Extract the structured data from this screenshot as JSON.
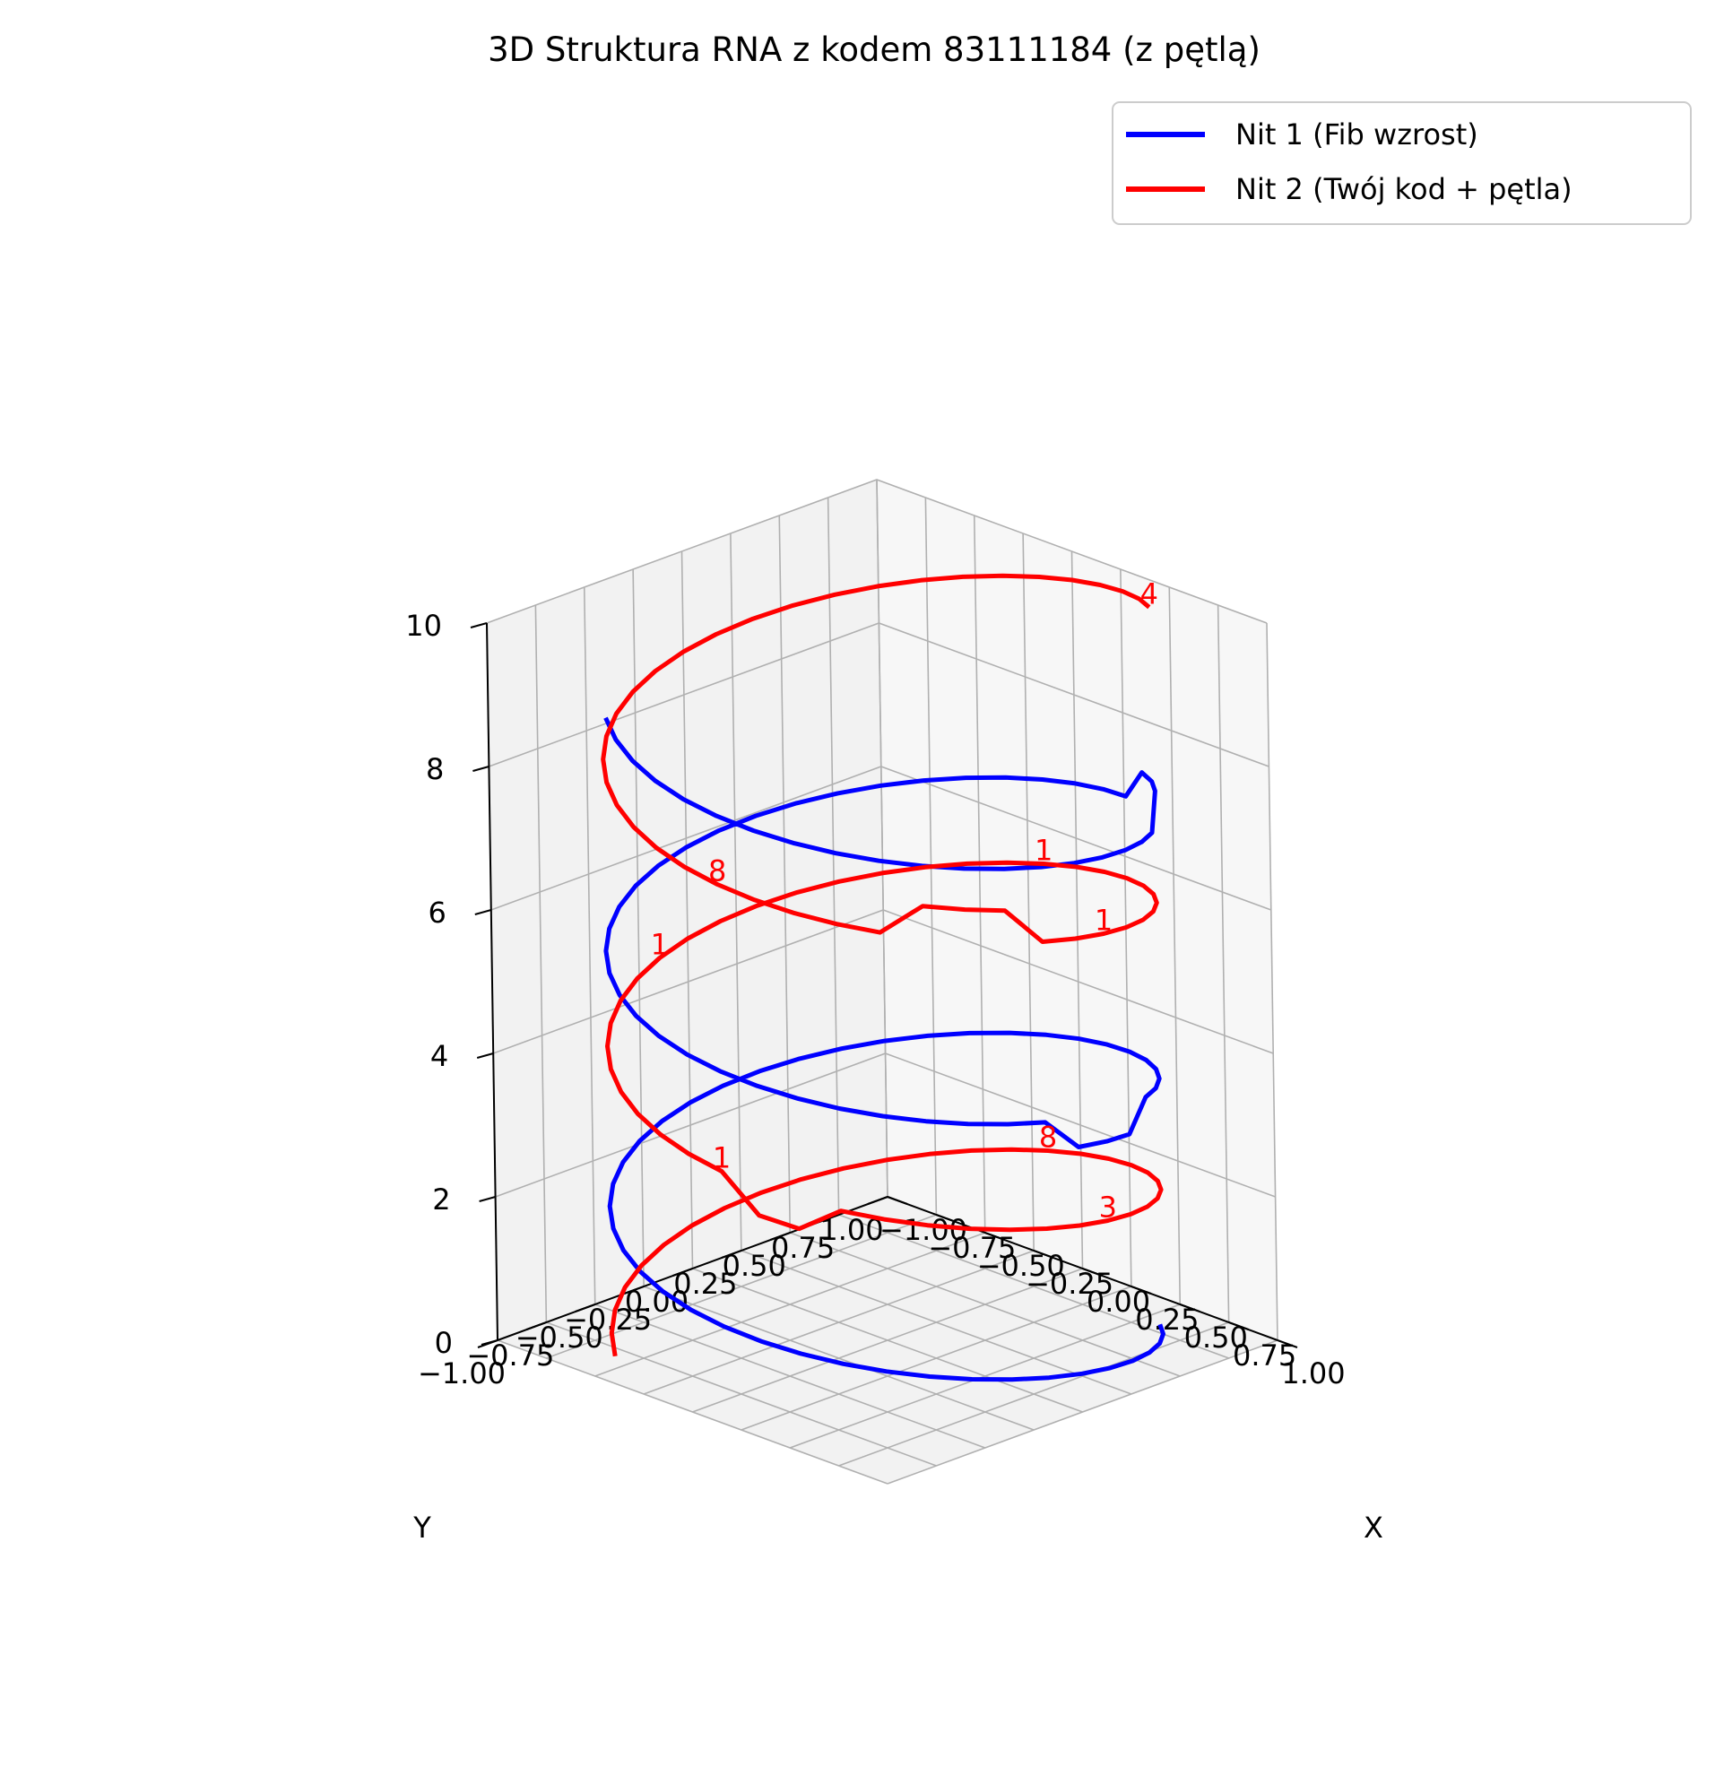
{
  "chart_data": {
    "type": "line",
    "title": "3D Struktura RNA z kodem 83111184 (z pętlą)",
    "xlabel": "X",
    "ylabel": "Y",
    "zlabel": "",
    "xlim": [
      -1.0,
      1.0
    ],
    "ylim": [
      -1.0,
      1.0
    ],
    "zlim": [
      0,
      10
    ],
    "grid": true,
    "legend_placement": "top-right",
    "x_ticks": [
      "−1.00",
      "−0.75",
      "−0.50",
      "−0.25",
      "0.00",
      "0.25",
      "0.50",
      "0.75",
      "1.00"
    ],
    "y_ticks": [
      "−1.00",
      "−0.75",
      "−0.50",
      "−0.25",
      "0.00",
      "0.25",
      "0.50",
      "0.75",
      "1.00"
    ],
    "z_ticks": [
      "0",
      "2",
      "4",
      "6",
      "8",
      "10"
    ],
    "series": [
      {
        "name": "Nit 1 (Fib wzrost)",
        "color": "#0000ff",
        "helix": {
          "turns": 2.5,
          "phase_start_deg": 126,
          "z_start": 0.0,
          "z_end": 8.9
        },
        "loops": [
          {
            "at_fraction": 0.45,
            "dz": -0.4
          },
          {
            "at_fraction": 0.8,
            "dz": 0.45
          }
        ]
      },
      {
        "name": "Nit 2 (Twój kod + pętla)",
        "color": "#ff0000",
        "helix": {
          "turns": 2.5,
          "phase_start_deg": 306,
          "z_start": 0.0,
          "z_end": 10.0
        },
        "loops": [
          {
            "at_fraction": 0.335,
            "dz": -0.4
          },
          {
            "at_fraction": 0.69,
            "dz": 0.45
          }
        ]
      }
    ],
    "annotations": [
      {
        "text": "8",
        "fraction": 0.15,
        "series": 1
      },
      {
        "text": "3",
        "fraction": 0.25,
        "series": 1
      },
      {
        "text": "1",
        "fraction": 0.35,
        "series": 1
      },
      {
        "text": "1",
        "fraction": 0.45,
        "series": 1
      },
      {
        "text": "1",
        "fraction": 0.55,
        "series": 1
      },
      {
        "text": "1",
        "fraction": 0.65,
        "series": 1
      },
      {
        "text": "8",
        "fraction": 0.75,
        "series": 1
      },
      {
        "text": "4",
        "fraction": 1.0,
        "series": 1
      }
    ]
  }
}
